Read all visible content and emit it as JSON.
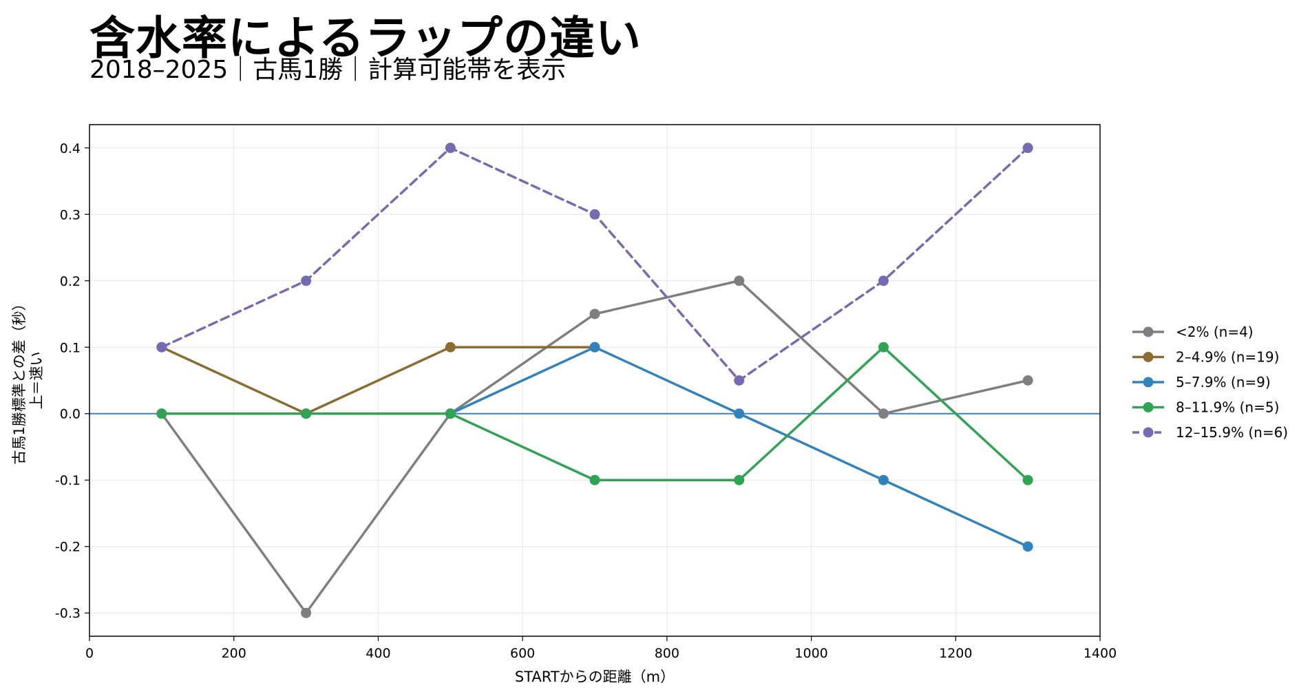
{
  "title": "含水率によるラップの違い",
  "subtitle": "2018–2025｜古馬1勝｜計算可能帯を表示",
  "chart_data": {
    "type": "line",
    "title": "含水率によるラップの違い",
    "subtitle": "2018–2025｜古馬1勝｜計算可能帯を表示",
    "xlabel": "STARTからの距離（m）",
    "ylabel_line1": "古馬1勝標準との差（秒）",
    "ylabel_line2": "上＝速い",
    "xlim": [
      0,
      1400
    ],
    "ylim": [
      -0.335,
      0.435
    ],
    "xticks": [
      0,
      200,
      400,
      600,
      800,
      1000,
      1200,
      1400
    ],
    "yticks": [
      -0.3,
      -0.2,
      -0.1,
      0.0,
      0.1,
      0.2,
      0.3,
      0.4
    ],
    "xtick_labels": [
      "0",
      "200",
      "400",
      "600",
      "800",
      "1000",
      "1200",
      "1400"
    ],
    "ytick_labels": [
      "-0.3",
      "-0.2",
      "-0.1",
      "0.0",
      "0.1",
      "0.2",
      "0.3",
      "0.4"
    ],
    "grid": true,
    "legend_position": "right",
    "reference_line": {
      "y": 0.0,
      "color": "#3f7fb5"
    },
    "series": [
      {
        "name": "<2%  (n=4)",
        "color": "#7f7f7f",
        "dashed": false,
        "x": [
          100,
          300,
          500,
          700,
          900,
          1100,
          1300
        ],
        "y": [
          0.0,
          -0.3,
          0.0,
          0.15,
          0.2,
          0.0,
          0.05
        ]
      },
      {
        "name": "2–4.9%  (n=19)",
        "color": "#8c6d31",
        "dashed": false,
        "x": [
          100,
          300,
          500,
          700
        ],
        "y": [
          0.1,
          0.0,
          0.1,
          0.1
        ]
      },
      {
        "name": "5–7.9%  (n=9)",
        "color": "#3182bd",
        "dashed": false,
        "x": [
          100,
          300,
          500,
          700,
          900,
          1100,
          1300
        ],
        "y": [
          0.0,
          0.0,
          0.0,
          0.1,
          0.0,
          -0.1,
          -0.2
        ]
      },
      {
        "name": "8–11.9%  (n=5)",
        "color": "#31a354",
        "dashed": false,
        "x": [
          100,
          300,
          500,
          700,
          900,
          1100,
          1300
        ],
        "y": [
          0.0,
          0.0,
          0.0,
          -0.1,
          -0.1,
          0.1,
          -0.1
        ]
      },
      {
        "name": "12–15.9%  (n=6)",
        "color": "#756bb1",
        "dashed": true,
        "x": [
          100,
          300,
          500,
          700,
          900,
          1100,
          1300
        ],
        "y": [
          0.1,
          0.2,
          0.4,
          0.3,
          0.05,
          0.2,
          0.4
        ]
      }
    ]
  }
}
